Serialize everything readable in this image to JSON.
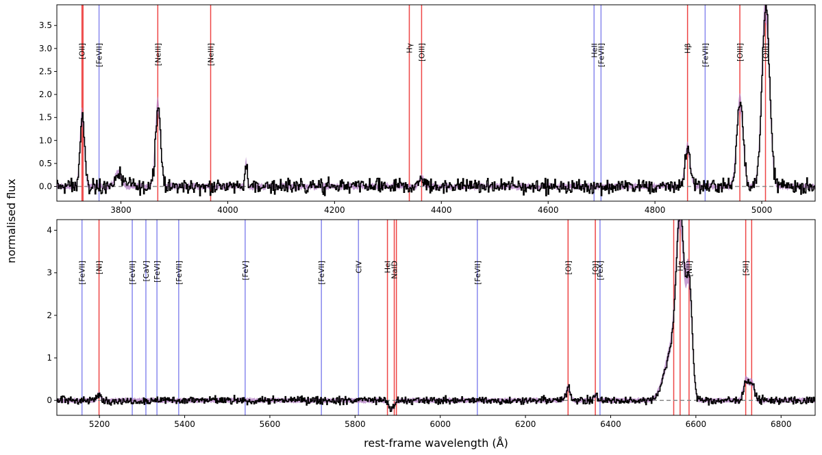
{
  "chart_data": {
    "type": "line",
    "shared_ylabel": "normalised flux",
    "colors": {
      "spectrum": "#000000",
      "model_band": "#b37fc4",
      "narrow_line": "#ee4444",
      "coronal_line": "#8888ee",
      "zero_line": "#888888"
    },
    "panels": [
      {
        "xlim": [
          3680,
          5100
        ],
        "ylim": [
          -0.32,
          3.95
        ],
        "xticks": [
          "3800",
          "4000",
          "4200",
          "4400",
          "4600",
          "4800",
          "5000"
        ],
        "yticks": [
          "0.0",
          "0.5",
          "1.0",
          "1.5",
          "2.0",
          "2.5",
          "3.0",
          "3.5"
        ],
        "xlabel": "",
        "noise": 0.06,
        "lines": [
          {
            "label": "[OII]",
            "x": 3727,
            "kind": "narrow"
          },
          {
            "label": "[OII]",
            "x": 3729,
            "kind": "narrow",
            "hidden_label": true
          },
          {
            "label": "[FeVII]",
            "x": 3759,
            "kind": "coronal"
          },
          {
            "label": "[NeIII]",
            "x": 3869,
            "kind": "narrow"
          },
          {
            "label": "[NeIII]",
            "x": 3968,
            "kind": "narrow"
          },
          {
            "label": "Hγ",
            "x": 4340,
            "kind": "narrow"
          },
          {
            "label": "[OIII]",
            "x": 4363,
            "kind": "narrow"
          },
          {
            "label": "HeII",
            "x": 4686,
            "kind": "coronal"
          },
          {
            "label": "[FeVII]",
            "x": 4699,
            "kind": "coronal"
          },
          {
            "label": "Hβ",
            "x": 4861,
            "kind": "narrow"
          },
          {
            "label": "[FeVII]",
            "x": 4894,
            "kind": "coronal"
          },
          {
            "label": "[OIII]",
            "x": 4959,
            "kind": "narrow"
          },
          {
            "label": "[OIII]",
            "x": 5007,
            "kind": "narrow"
          }
        ],
        "emission": [
          {
            "x": 3727,
            "amp": 1.55,
            "sigma": 4
          },
          {
            "x": 3869,
            "amp": 1.75,
            "sigma": 5
          },
          {
            "x": 3795,
            "amp": 0.3,
            "sigma": 6
          },
          {
            "x": 4034,
            "amp": 0.55,
            "sigma": 2
          },
          {
            "x": 4363,
            "amp": 0.2,
            "sigma": 4
          },
          {
            "x": 4861,
            "amp": 0.85,
            "sigma": 5
          },
          {
            "x": 4959,
            "amp": 1.85,
            "sigma": 6
          },
          {
            "x": 5007,
            "amp": 3.95,
            "sigma": 7
          }
        ]
      },
      {
        "xlim": [
          5100,
          6880
        ],
        "ylim": [
          -0.35,
          4.25
        ],
        "xticks": [
          "5200",
          "5400",
          "5600",
          "5800",
          "6000",
          "6200",
          "6400",
          "6600",
          "6800"
        ],
        "yticks": [
          "0",
          "1",
          "2",
          "3",
          "4"
        ],
        "xlabel": "rest-frame wavelength (Å)",
        "noise": 0.035,
        "lines": [
          {
            "label": "[FeVII]",
            "x": 5159,
            "kind": "coronal"
          },
          {
            "label": "[NI]",
            "x": 5199,
            "kind": "narrow"
          },
          {
            "label": "[FeVII]",
            "x": 5277,
            "kind": "coronal"
          },
          {
            "label": "[CaV]",
            "x": 5309,
            "kind": "coronal"
          },
          {
            "label": "[FeVI]",
            "x": 5335,
            "kind": "coronal"
          },
          {
            "label": "[FeVII]",
            "x": 5386,
            "kind": "coronal"
          },
          {
            "label": "[FeV]",
            "x": 5542,
            "kind": "coronal"
          },
          {
            "label": "[FeVII]",
            "x": 5721,
            "kind": "coronal"
          },
          {
            "label": "CIV",
            "x": 5808,
            "kind": "coronal"
          },
          {
            "label": "HeI",
            "x": 5876,
            "kind": "narrow"
          },
          {
            "label": "NaID",
            "x": 5892,
            "kind": "narrow"
          },
          {
            "label": "NaID",
            "x": 5897,
            "kind": "narrow",
            "hidden_label": true
          },
          {
            "label": "[FeVII]",
            "x": 6087,
            "kind": "coronal"
          },
          {
            "label": "[OI]",
            "x": 6300,
            "kind": "narrow"
          },
          {
            "label": "[OI]",
            "x": 6364,
            "kind": "narrow"
          },
          {
            "label": "[FeX]",
            "x": 6375,
            "kind": "coronal"
          },
          {
            "label": "Hα",
            "x": 6563,
            "kind": "narrow"
          },
          {
            "label": "[NII]",
            "x": 6548,
            "kind": "narrow",
            "hidden_label": true
          },
          {
            "label": "[NII]",
            "x": 6584,
            "kind": "narrow"
          },
          {
            "label": "[SII]",
            "x": 6717,
            "kind": "narrow"
          },
          {
            "label": "[SII]",
            "x": 6731,
            "kind": "narrow",
            "hidden_label": true
          }
        ],
        "emission": [
          {
            "x": 5199,
            "amp": 0.15,
            "sigma": 4
          },
          {
            "x": 6300,
            "amp": 0.3,
            "sigma": 5
          },
          {
            "x": 6364,
            "amp": 0.12,
            "sigma": 4
          },
          {
            "x": 6563,
            "amp": 3.7,
            "sigma": 9
          },
          {
            "x": 6545,
            "amp": 1.2,
            "sigma": 18
          },
          {
            "x": 6584,
            "amp": 2.6,
            "sigma": 7
          },
          {
            "x": 6717,
            "amp": 0.45,
            "sigma": 6
          },
          {
            "x": 6731,
            "amp": 0.4,
            "sigma": 6
          },
          {
            "x": 5885,
            "amp": -0.22,
            "sigma": 6
          }
        ]
      }
    ]
  }
}
